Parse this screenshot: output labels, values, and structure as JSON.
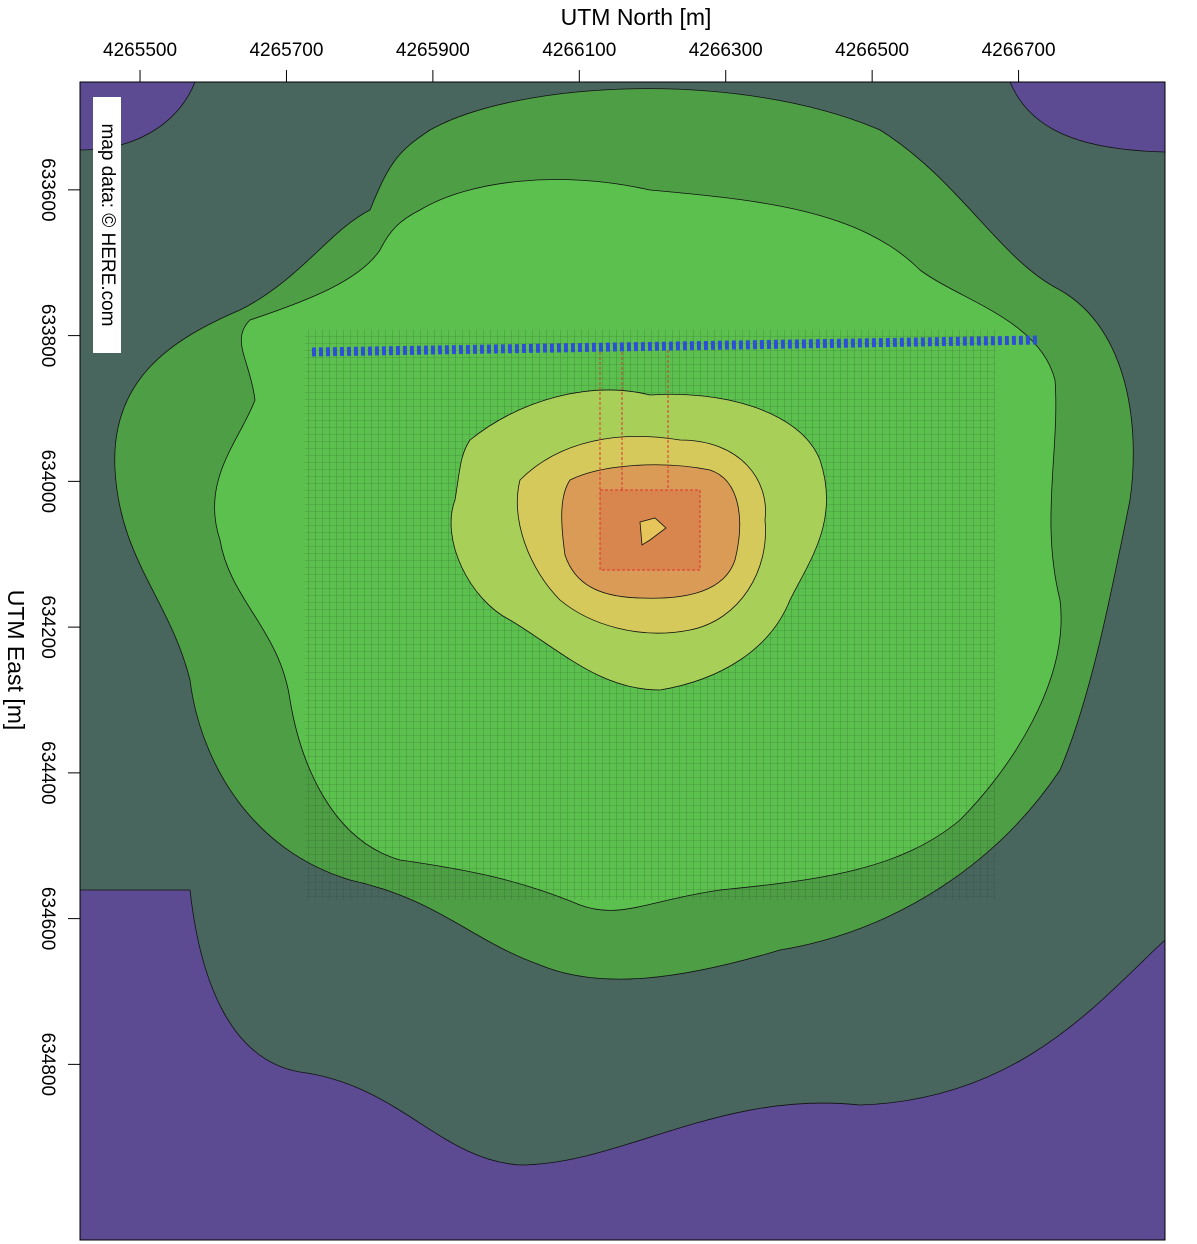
{
  "chart_data": {
    "type": "contour-map",
    "xlabel": "UTM North [m]",
    "ylabel": "UTM East [m]",
    "xlim": [
      4265418,
      4266900
    ],
    "ylim": [
      633452,
      635041
    ],
    "xticks": [
      4265500,
      4265700,
      4265900,
      4266100,
      4266300,
      4266500,
      4266700
    ],
    "yticks": [
      633600,
      633800,
      634000,
      634200,
      634400,
      634600,
      634800
    ],
    "attribution": "map data: © HERE.com"
  }
}
